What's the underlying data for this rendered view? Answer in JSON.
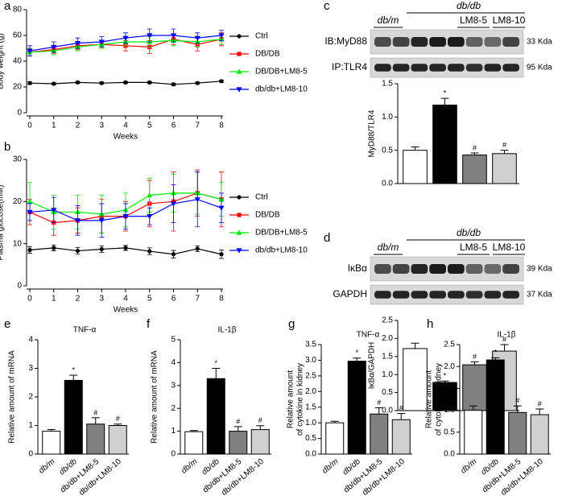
{
  "chart_data": [
    {
      "type": "line",
      "panel": "a",
      "ylabel": "Body weight (g)",
      "xlabel": "Weeks",
      "x": [
        0,
        1,
        2,
        3,
        4,
        5,
        6,
        7,
        8
      ],
      "xlim": [
        0,
        8
      ],
      "xticks": [
        0,
        1,
        2,
        3,
        4,
        5,
        6,
        7,
        8
      ],
      "ylim": [
        0,
        80
      ],
      "yticks": [
        0,
        20,
        40,
        60,
        80
      ],
      "legend": "right",
      "series": [
        {
          "name": "Ctrl",
          "color": "#000000",
          "marker": "circle",
          "values": [
            23,
            22.5,
            23.5,
            23,
            23.5,
            23.5,
            22,
            23,
            24.5
          ],
          "errors": [
            1,
            0.8,
            0.8,
            0.8,
            0.8,
            0.8,
            1,
            0.8,
            0.8
          ]
        },
        {
          "name": "DB/DB",
          "color": "#ff0000",
          "marker": "square",
          "values": [
            47,
            49,
            52,
            53,
            52,
            51,
            57,
            53,
            57
          ],
          "errors": [
            3,
            3,
            3,
            3,
            4,
            5,
            4,
            5,
            5
          ]
        },
        {
          "name": "DB/DB+LM8-5",
          "color": "#00ee00",
          "marker": "triangle-up",
          "values": [
            47,
            48,
            51,
            53,
            55,
            55,
            56,
            55,
            57
          ],
          "errors": [
            3,
            3,
            3,
            3,
            3,
            4,
            4,
            4,
            4
          ]
        },
        {
          "name": "db/db+LM8-10",
          "color": "#0000ff",
          "marker": "triangle-down",
          "values": [
            48,
            51,
            54,
            55,
            58,
            60,
            60,
            58,
            60
          ],
          "errors": [
            4,
            4,
            4,
            4,
            4,
            5,
            5,
            4,
            4
          ]
        }
      ]
    },
    {
      "type": "line",
      "panel": "b",
      "ylabel": "Plasma glucose(mM)",
      "xlabel": "Weeks",
      "x": [
        0,
        1,
        2,
        3,
        4,
        5,
        6,
        7,
        8
      ],
      "xlim": [
        0,
        8
      ],
      "xticks": [
        0,
        1,
        2,
        3,
        4,
        5,
        6,
        7,
        8
      ],
      "ylim": [
        0,
        30
      ],
      "yticks": [
        0,
        10,
        20,
        30
      ],
      "legend": "right",
      "series": [
        {
          "name": "Ctrl",
          "color": "#000000",
          "marker": "circle",
          "values": [
            8.5,
            9,
            8.3,
            8.7,
            9,
            8.2,
            7.5,
            8.8,
            7.5
          ],
          "errors": [
            0.8,
            0.7,
            0.8,
            0.8,
            0.6,
            0.8,
            0.9,
            0.7,
            1
          ]
        },
        {
          "name": "DB/DB",
          "color": "#ff0000",
          "marker": "square",
          "values": [
            17.5,
            15,
            15.5,
            16.5,
            16.5,
            19.5,
            20,
            22,
            20.5
          ],
          "errors": [
            3,
            3,
            3,
            4,
            3.5,
            5.5,
            7,
            5.5,
            6.5
          ]
        },
        {
          "name": "DB/DB+LM8-5",
          "color": "#00ee00",
          "marker": "triangle-up",
          "values": [
            20,
            17.5,
            17.5,
            17,
            18,
            21.5,
            22,
            22,
            20.5
          ],
          "errors": [
            4.5,
            4,
            4,
            4.5,
            4,
            4,
            4.5,
            5,
            4
          ]
        },
        {
          "name": "db/db+LM8-10",
          "color": "#0000ff",
          "marker": "triangle-down",
          "values": [
            17.5,
            18,
            15.5,
            15.5,
            16.5,
            16.5,
            19.5,
            20.5,
            18.5
          ],
          "errors": [
            2,
            3,
            3.5,
            4,
            3,
            2,
            4.5,
            6.5,
            3.5
          ]
        }
      ]
    },
    {
      "type": "bar",
      "panel": "c",
      "ylabel": "MyD88/TLR4",
      "values": [
        0.5,
        1.18,
        0.43,
        0.45
      ],
      "errors": [
        0.05,
        0.1,
        0.03,
        0.05
      ],
      "colors": [
        "#ffffff",
        "#000000",
        "#808080",
        "#d0d0d0"
      ],
      "value_annotations": [
        null,
        "*",
        "#",
        "#"
      ],
      "ylim": [
        0,
        1.5
      ],
      "yticks": [
        {
          "value": 0,
          "label": "0.0"
        },
        0.5,
        {
          "value": 1,
          "label": "1.0"
        },
        1.5
      ],
      "blot": {
        "groups": [
          "db/m",
          "db/db",
          "LM8-5",
          "LM8-10"
        ],
        "rows": [
          {
            "label": "IB:MyD88",
            "size": "33 Kda"
          },
          {
            "label": "IP:TLR4",
            "size": "95 Kda"
          }
        ]
      }
    },
    {
      "type": "bar",
      "panel": "d",
      "ylabel": "IκBα/GAPDH",
      "values": [
        1.72,
        0.78,
        1.27,
        1.65
      ],
      "errors": [
        0.15,
        0.04,
        0.08,
        0.18
      ],
      "colors": [
        "#ffffff",
        "#000000",
        "#808080",
        "#d0d0d0"
      ],
      "value_annotations": [
        null,
        "*",
        "#",
        "#"
      ],
      "ylim": [
        0,
        2.5
      ],
      "yticks": [
        {
          "value": 0,
          "label": "0.0"
        },
        0.5,
        {
          "value": 1,
          "label": "1.0"
        },
        1.5,
        {
          "value": 2,
          "label": "2.0"
        },
        2.5
      ],
      "blot": {
        "groups": [
          "db/m",
          "db/db",
          "LM8-5",
          "LM8-10"
        ],
        "rows": [
          {
            "label": "IκBα",
            "size": "39 Kda"
          },
          {
            "label": "GAPDH",
            "size": "37 Kda"
          }
        ]
      }
    },
    {
      "type": "bar",
      "panel": "e",
      "title": "TNF-α",
      "ylabel": [
        "Relative amount of mRNA"
      ],
      "categories": [
        "db/m",
        "db/db",
        "db/db+LM8-5",
        "db/db+LM8-10"
      ],
      "values": [
        0.8,
        2.58,
        1.05,
        1.0
      ],
      "errors": [
        0.06,
        0.18,
        0.22,
        0.05
      ],
      "colors": [
        "#ffffff",
        "#000000",
        "#808080",
        "#d0d0d0"
      ],
      "value_annotations": [
        null,
        "*",
        "#",
        "#"
      ],
      "ylim": [
        0,
        4
      ],
      "yticks": [
        0,
        1,
        2,
        3,
        4
      ]
    },
    {
      "type": "bar",
      "panel": "f",
      "title": "IL-1β",
      "ylabel": [
        "Relative amount of mRNA"
      ],
      "categories": [
        "db/m",
        "db/db",
        "db/db+LM8-5",
        "db/db+LM8-10"
      ],
      "values": [
        0.98,
        3.3,
        1.0,
        1.07
      ],
      "errors": [
        0.05,
        0.45,
        0.2,
        0.17
      ],
      "colors": [
        "#ffffff",
        "#000000",
        "#808080",
        "#d0d0d0"
      ],
      "value_annotations": [
        null,
        "*",
        "#",
        "#"
      ],
      "ylim": [
        0,
        5
      ],
      "yticks": [
        0,
        1,
        2,
        3,
        4,
        5
      ]
    },
    {
      "type": "bar",
      "panel": "g",
      "title": "TNF-α",
      "ylabel": [
        "Relative amount",
        "of cytokine in kidney"
      ],
      "categories": [
        "db/m",
        "db/db",
        "db/db+LM8-5",
        "db/db+LM8-10"
      ],
      "values": [
        1.0,
        2.97,
        1.28,
        1.1
      ],
      "errors": [
        0.05,
        0.1,
        0.2,
        0.2
      ],
      "colors": [
        "#ffffff",
        "#000000",
        "#808080",
        "#d0d0d0"
      ],
      "value_annotations": [
        null,
        "*",
        "#",
        "#"
      ],
      "ylim": [
        0,
        3.5
      ],
      "yticks": [
        {
          "value": 0,
          "label": "0.0"
        },
        0.5,
        {
          "value": 1,
          "label": "1.0"
        },
        1.5,
        {
          "value": 2,
          "label": "2.0"
        },
        2.5,
        {
          "value": 3,
          "label": "3.0"
        },
        3.5
      ]
    },
    {
      "type": "bar",
      "panel": "h",
      "title": "IL-1β",
      "ylabel": [
        "Relative amount",
        "of cytokine in kidney"
      ],
      "categories": [
        "db/m",
        "db/db",
        "db/db+LM8-5",
        "db/db+LM8-10"
      ],
      "values": [
        1.0,
        2.15,
        0.95,
        0.9
      ],
      "errors": [
        0.1,
        0.05,
        0.15,
        0.13
      ],
      "colors": [
        "#ffffff",
        "#000000",
        "#808080",
        "#d0d0d0"
      ],
      "value_annotations": [
        null,
        "*",
        "#",
        "#"
      ],
      "ylim": [
        0,
        2.5
      ],
      "yticks": [
        {
          "value": 0,
          "label": "0.0"
        },
        0.5,
        {
          "value": 1,
          "label": "1.0"
        },
        1.5,
        {
          "value": 2,
          "label": "2.0"
        },
        2.5
      ]
    }
  ]
}
